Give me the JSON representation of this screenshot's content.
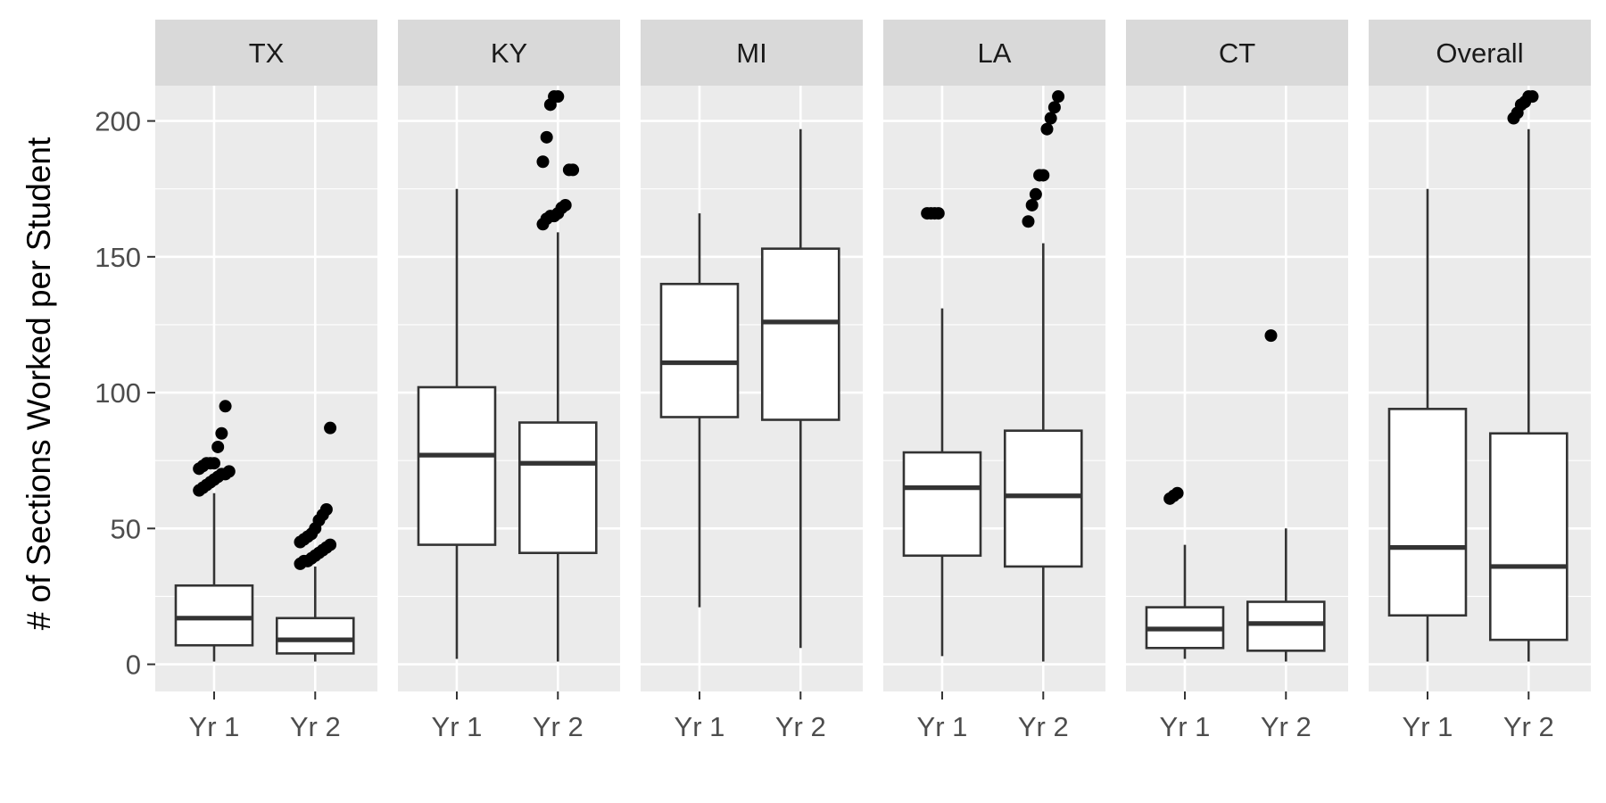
{
  "chart_data": {
    "type": "boxplot",
    "ylabel": "# of Sections Worked per Student",
    "xlabel": "",
    "ylim": [
      -10,
      213
    ],
    "yticks": [
      0,
      50,
      100,
      150,
      200
    ],
    "categories": [
      "Yr 1",
      "Yr 2"
    ],
    "grid": true,
    "colors": {
      "panel_background": "#ebebeb",
      "strip_background": "#d9d9d9",
      "grid_line": "#ffffff",
      "box_fill": "#ffffff",
      "box_line": "#333333",
      "outlier": "#000000"
    },
    "panels": [
      {
        "name": "TX",
        "boxes": [
          {
            "label": "Yr 1",
            "min": 1,
            "q1": 7,
            "median": 17,
            "q3": 29,
            "max": 63,
            "outliers": [
              64,
              65,
              66,
              67,
              68,
              69,
              70,
              70,
              71,
              72,
              73,
              74,
              74,
              74,
              80,
              85,
              95
            ]
          },
          {
            "label": "Yr 2",
            "min": 1,
            "q1": 4,
            "median": 9,
            "q3": 17,
            "max": 36,
            "outliers": [
              37,
              38,
              38,
              39,
              40,
              41,
              42,
              43,
              44,
              45,
              46,
              47,
              48,
              50,
              53,
              55,
              57,
              87
            ]
          }
        ]
      },
      {
        "name": "KY",
        "boxes": [
          {
            "label": "Yr 1",
            "min": 2,
            "q1": 44,
            "median": 77,
            "q3": 102,
            "max": 175,
            "outliers": []
          },
          {
            "label": "Yr 2",
            "min": 1,
            "q1": 41,
            "median": 74,
            "q3": 89,
            "max": 159,
            "outliers": [
              162,
              164,
              165,
              165,
              166,
              168,
              169,
              182,
              182,
              185,
              194,
              206,
              209,
              209
            ]
          }
        ]
      },
      {
        "name": "MI",
        "boxes": [
          {
            "label": "Yr 1",
            "min": 21,
            "q1": 91,
            "median": 111,
            "q3": 140,
            "max": 166,
            "outliers": []
          },
          {
            "label": "Yr 2",
            "min": 6,
            "q1": 90,
            "median": 126,
            "q3": 153,
            "max": 197,
            "outliers": []
          }
        ]
      },
      {
        "name": "LA",
        "boxes": [
          {
            "label": "Yr 1",
            "min": 3,
            "q1": 40,
            "median": 65,
            "q3": 78,
            "max": 131,
            "outliers": [
              166,
              166,
              166,
              166
            ]
          },
          {
            "label": "Yr 2",
            "min": 1,
            "q1": 36,
            "median": 62,
            "q3": 86,
            "max": 155,
            "outliers": [
              163,
              169,
              173,
              180,
              180,
              197,
              201,
              205,
              209
            ]
          }
        ]
      },
      {
        "name": "CT",
        "boxes": [
          {
            "label": "Yr 1",
            "min": 2,
            "q1": 6,
            "median": 13,
            "q3": 21,
            "max": 44,
            "outliers": [
              61,
              62,
              63
            ]
          },
          {
            "label": "Yr 2",
            "min": 1,
            "q1": 5,
            "median": 15,
            "q3": 23,
            "max": 50,
            "outliers": [
              121
            ]
          }
        ]
      },
      {
        "name": "Overall",
        "boxes": [
          {
            "label": "Yr 1",
            "min": 1,
            "q1": 18,
            "median": 43,
            "q3": 94,
            "max": 175,
            "outliers": []
          },
          {
            "label": "Yr 2",
            "min": 1,
            "q1": 9,
            "median": 36,
            "q3": 85,
            "max": 197,
            "outliers": [
              201,
              203,
              206,
              207,
              209,
              209
            ]
          }
        ]
      }
    ]
  }
}
